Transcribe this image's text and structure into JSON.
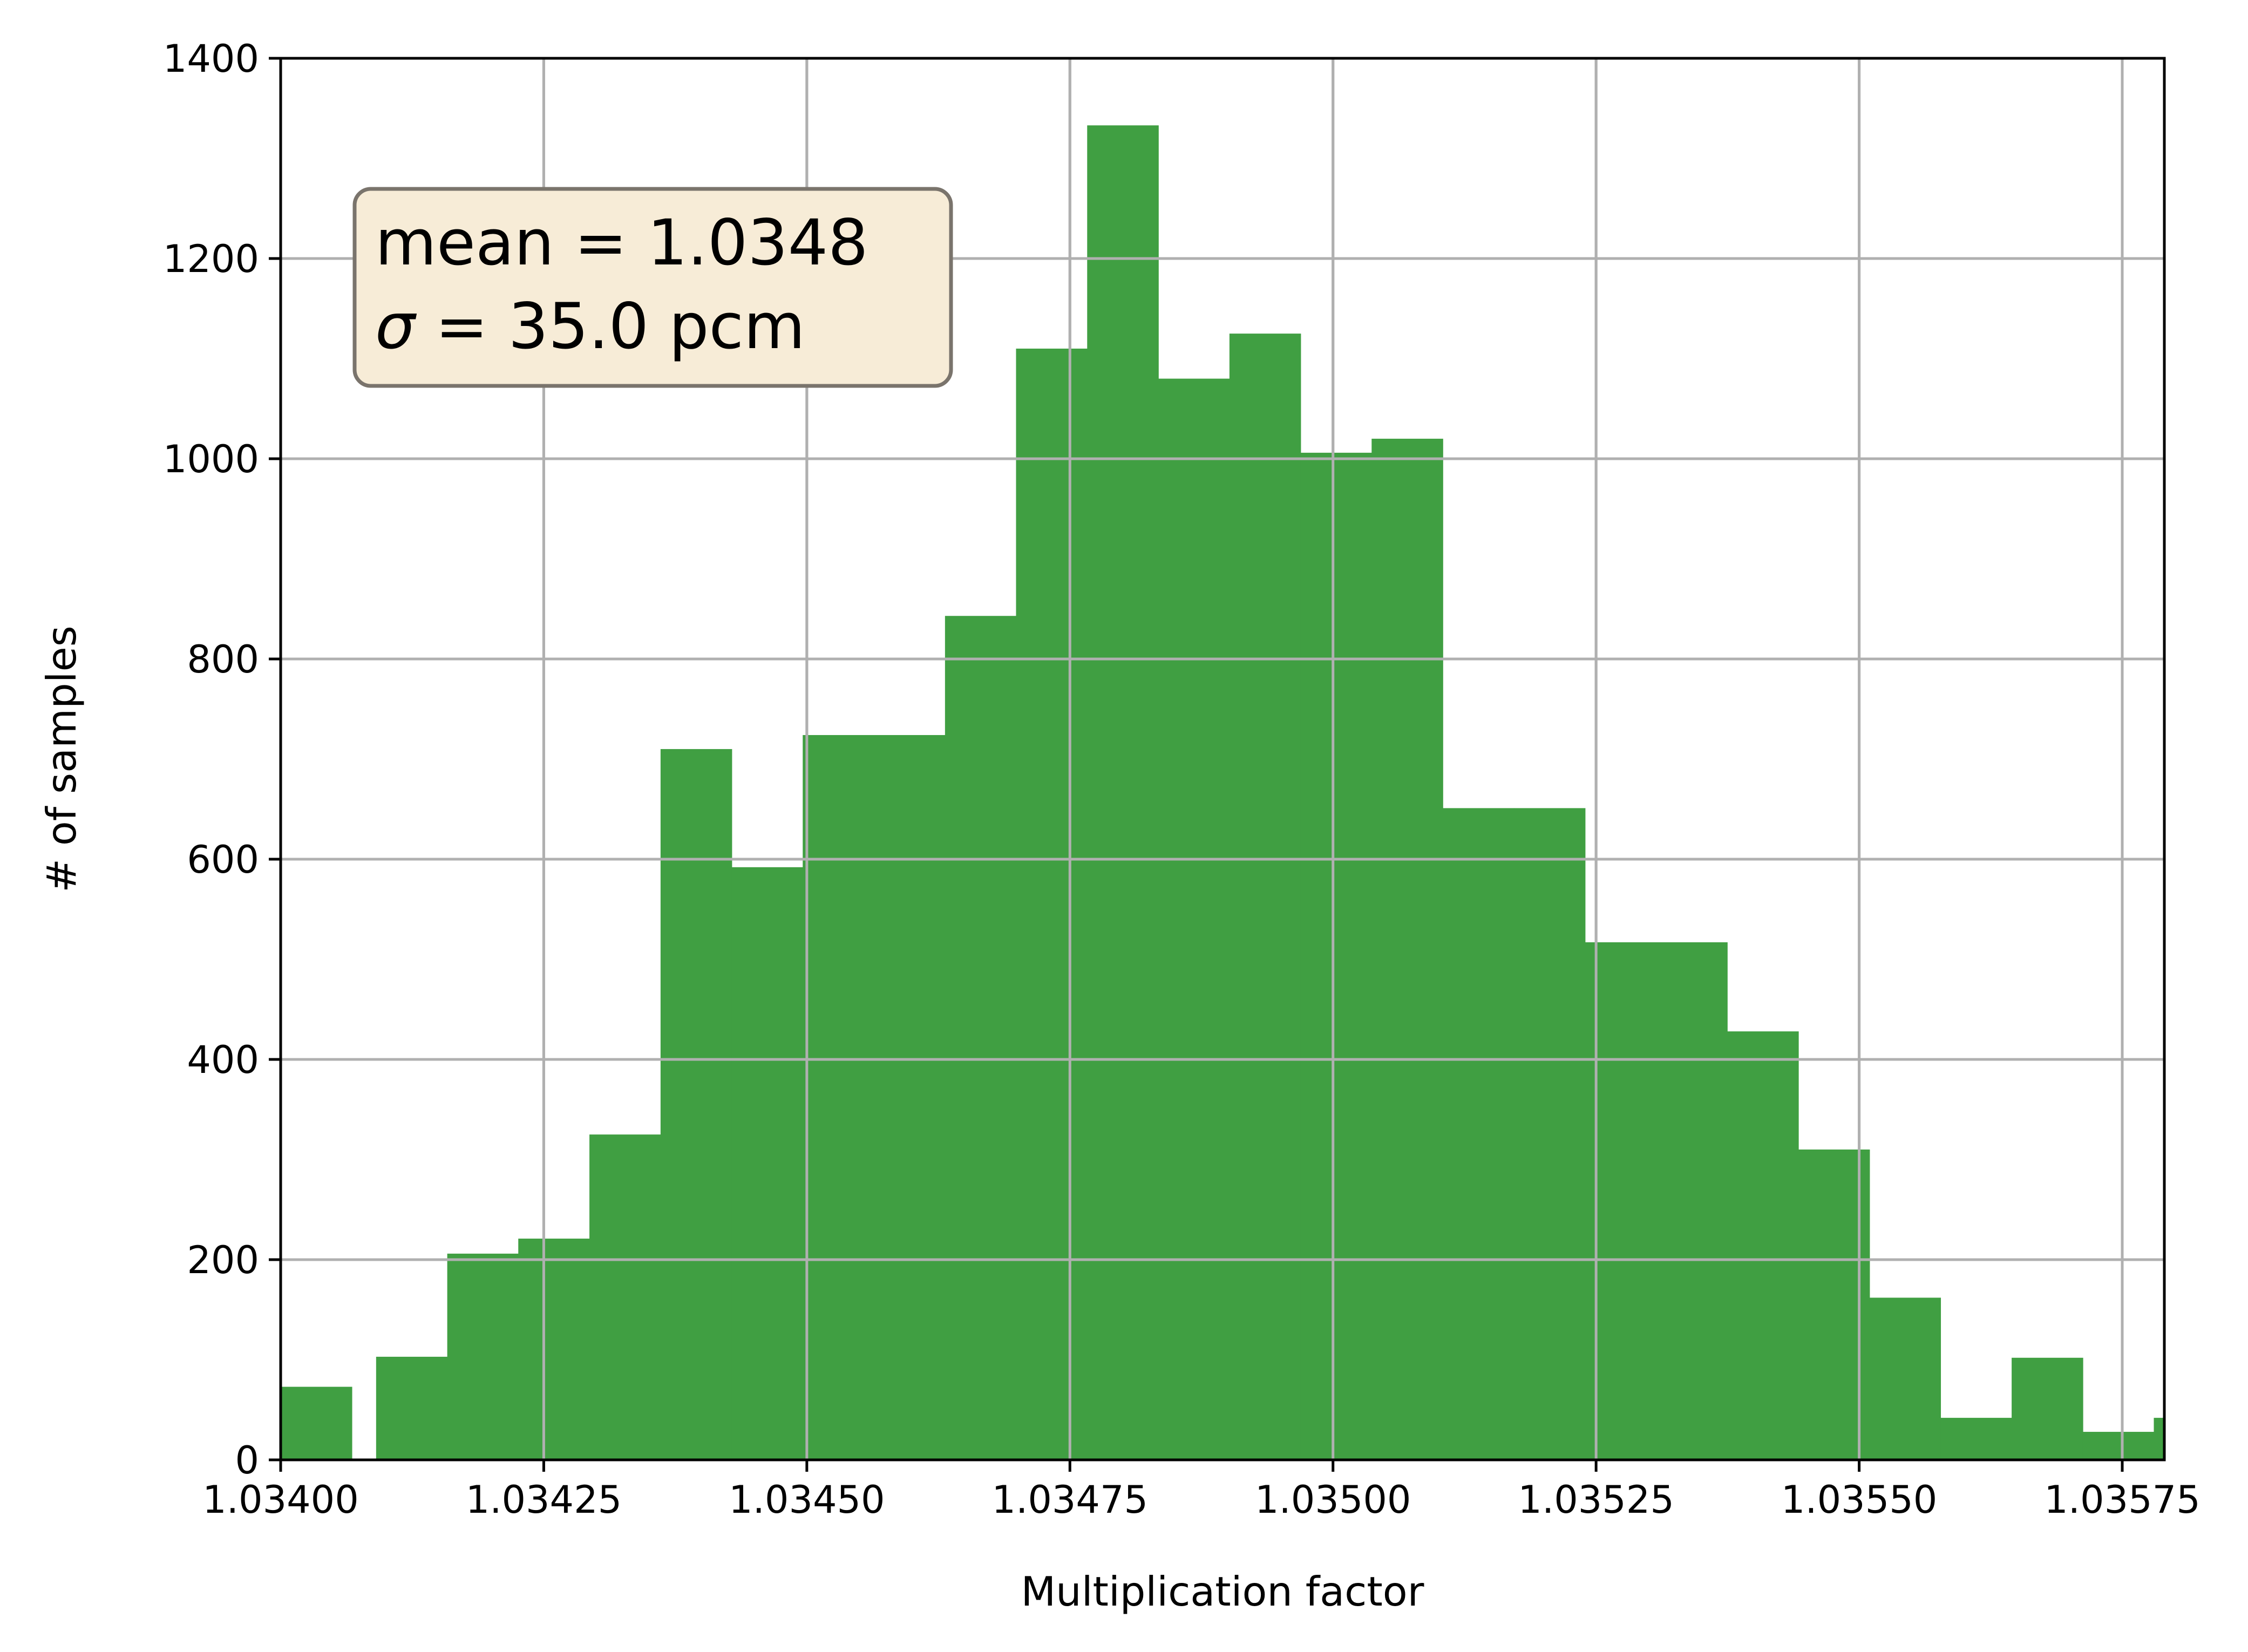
{
  "chart_data": {
    "type": "bar",
    "title": "",
    "xlabel": "Multiplication factor",
    "ylabel": "# of samples",
    "xlim": [
      1.034,
      1.03579
    ],
    "ylim": [
      0,
      1400
    ],
    "grid": true,
    "bar_color": "#409f42",
    "bin_width": 6.757e-05,
    "bins": [
      {
        "x_start": 1.034,
        "count": 73
      },
      {
        "x_start": 1.0340907,
        "count": 103
      },
      {
        "x_start": 1.0341583,
        "count": 206
      },
      {
        "x_start": 1.0342258,
        "count": 221
      },
      {
        "x_start": 1.0342934,
        "count": 325
      },
      {
        "x_start": 1.034361,
        "count": 710
      },
      {
        "x_start": 1.0344286,
        "count": 592
      },
      {
        "x_start": 1.0344961,
        "count": 724
      },
      {
        "x_start": 1.0345637,
        "count": 724
      },
      {
        "x_start": 1.0346313,
        "count": 843
      },
      {
        "x_start": 1.0346988,
        "count": 1110
      },
      {
        "x_start": 1.0347664,
        "count": 1333
      },
      {
        "x_start": 1.034834,
        "count": 1080
      },
      {
        "x_start": 1.0349016,
        "count": 1125
      },
      {
        "x_start": 1.0349691,
        "count": 1006
      },
      {
        "x_start": 1.0350367,
        "count": 1020
      },
      {
        "x_start": 1.0351043,
        "count": 651
      },
      {
        "x_start": 1.0351719,
        "count": 651
      },
      {
        "x_start": 1.0352394,
        "count": 517
      },
      {
        "x_start": 1.035307,
        "count": 517
      },
      {
        "x_start": 1.0353746,
        "count": 428
      },
      {
        "x_start": 1.0354422,
        "count": 310
      },
      {
        "x_start": 1.0355097,
        "count": 162
      },
      {
        "x_start": 1.0355773,
        "count": 42
      },
      {
        "x_start": 1.0356449,
        "count": 102
      },
      {
        "x_start": 1.0357124,
        "count": 28
      },
      {
        "x_start": 1.03578,
        "count": 42
      }
    ],
    "x_ticks": [
      {
        "value": 1.034,
        "label": "1.03400"
      },
      {
        "value": 1.03425,
        "label": "1.03425"
      },
      {
        "value": 1.0345,
        "label": "1.03450"
      },
      {
        "value": 1.03475,
        "label": "1.03475"
      },
      {
        "value": 1.035,
        "label": "1.03500"
      },
      {
        "value": 1.03525,
        "label": "1.03525"
      },
      {
        "value": 1.0355,
        "label": "1.03550"
      },
      {
        "value": 1.03575,
        "label": "1.03575"
      }
    ],
    "y_ticks": [
      {
        "value": 0,
        "label": "0"
      },
      {
        "value": 200,
        "label": "200"
      },
      {
        "value": 400,
        "label": "400"
      },
      {
        "value": 600,
        "label": "600"
      },
      {
        "value": 800,
        "label": "800"
      },
      {
        "value": 1000,
        "label": "1000"
      },
      {
        "value": 1200,
        "label": "1200"
      },
      {
        "value": 1400,
        "label": "1400"
      }
    ],
    "annotation": {
      "position": "top-left",
      "line1": "mean = 1.0348",
      "line2_symbol": "σ",
      "line2_rest": " = 35.0 pcm",
      "fill": "#f7ecd7",
      "edge": "#7a746c"
    }
  }
}
